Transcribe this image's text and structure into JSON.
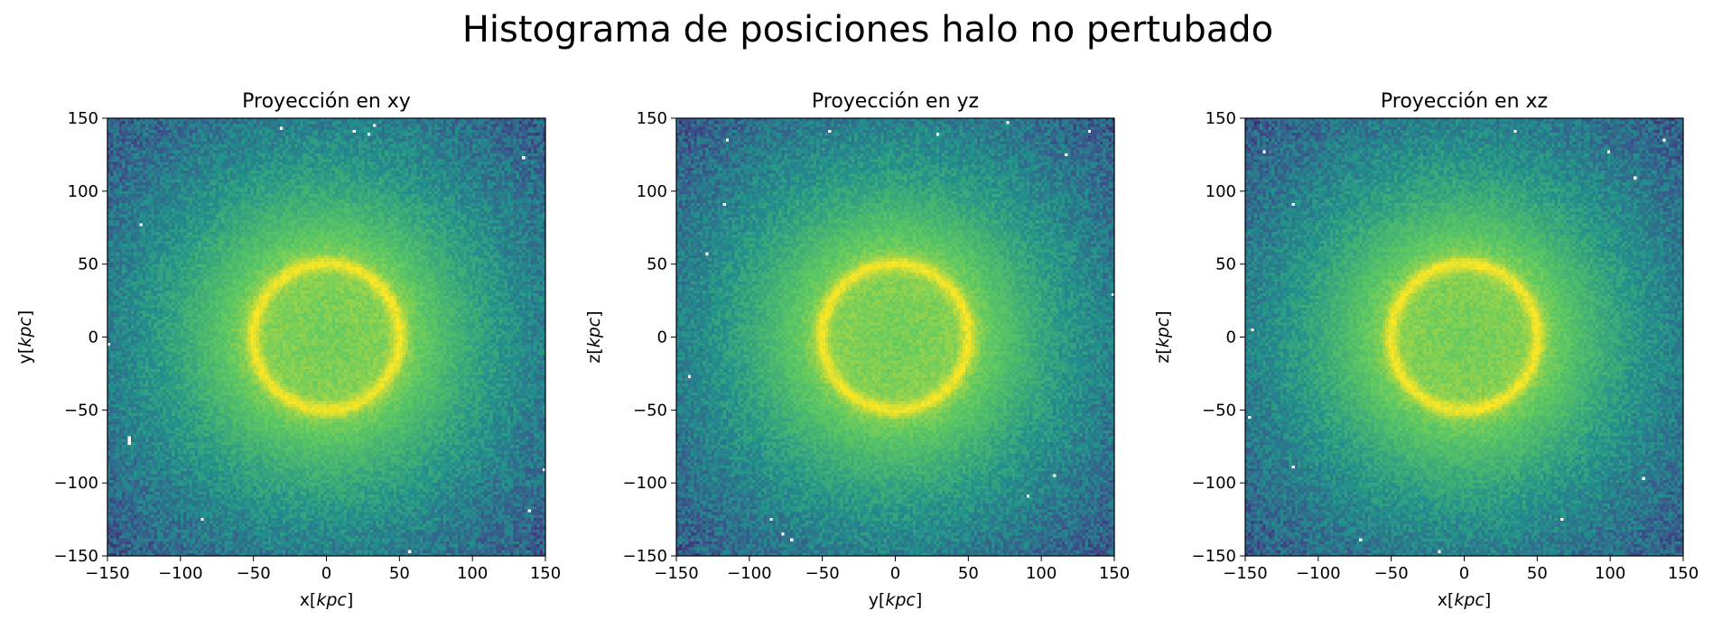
{
  "figure": {
    "title": "Histograma de posiciones halo no pertubado"
  },
  "colormap": [
    "#440154",
    "#3b528b",
    "#21918c",
    "#5ec962",
    "#fde725"
  ],
  "chart_data": [
    {
      "type": "heatmap",
      "title": "Proyección en xy",
      "xlabel": {
        "prefix": "x",
        "unit": "kpc"
      },
      "ylabel": {
        "prefix": "y",
        "unit": "kpc"
      },
      "xlim": [
        -150,
        150
      ],
      "ylim": [
        -150,
        150
      ],
      "xticks": [
        -150,
        -100,
        -50,
        0,
        50,
        100,
        150
      ],
      "yticks": [
        -150,
        -100,
        -50,
        0,
        50,
        100,
        150
      ],
      "bins": 150,
      "ring_radius": 50,
      "ring_center": [
        0,
        0
      ],
      "grid": false
    },
    {
      "type": "heatmap",
      "title": "Proyección en yz",
      "xlabel": {
        "prefix": "y",
        "unit": "kpc"
      },
      "ylabel": {
        "prefix": "z",
        "unit": "kpc"
      },
      "xlim": [
        -150,
        150
      ],
      "ylim": [
        -150,
        150
      ],
      "xticks": [
        -150,
        -100,
        -50,
        0,
        50,
        100,
        150
      ],
      "yticks": [
        -150,
        -100,
        -50,
        0,
        50,
        100,
        150
      ],
      "bins": 150,
      "ring_radius": 50,
      "ring_center": [
        0,
        0
      ],
      "grid": false
    },
    {
      "type": "heatmap",
      "title": "Proyección en xz",
      "xlabel": {
        "prefix": "x",
        "unit": "kpc"
      },
      "ylabel": {
        "prefix": "z",
        "unit": "kpc"
      },
      "xlim": [
        -150,
        150
      ],
      "ylim": [
        -150,
        150
      ],
      "xticks": [
        -150,
        -100,
        -50,
        0,
        50,
        100,
        150
      ],
      "yticks": [
        -150,
        -100,
        -50,
        0,
        50,
        100,
        150
      ],
      "bins": 150,
      "ring_radius": 50,
      "ring_center": [
        0,
        0
      ],
      "grid": false
    }
  ]
}
